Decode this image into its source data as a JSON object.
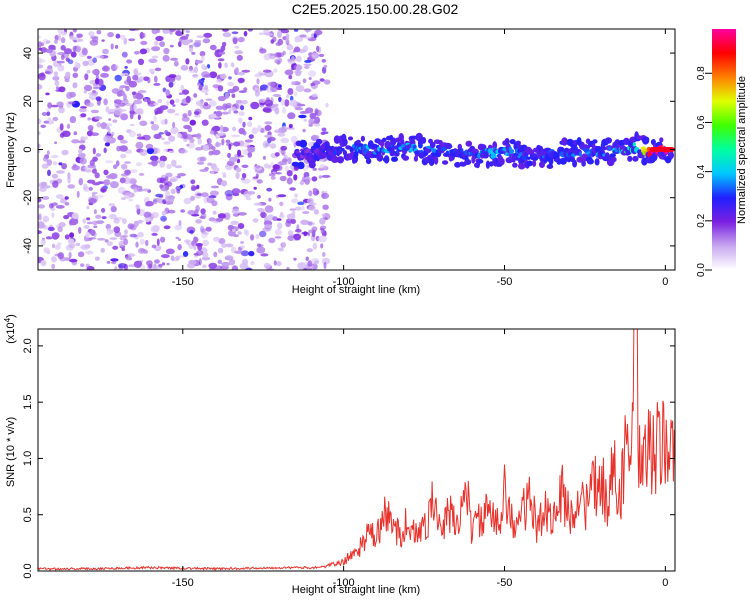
{
  "title": "C2E5.2025.150.00.28.G02",
  "chart_data": [
    {
      "type": "heatmap",
      "xlabel": "Height of straight line (km)",
      "ylabel": "Frequency (Hz)",
      "xlim": [
        -195,
        3
      ],
      "ylim": [
        -50,
        50
      ],
      "xticks": [
        -150,
        -100,
        -50,
        0
      ],
      "yticks": [
        -40,
        -20,
        0,
        20,
        40
      ],
      "colorbar": {
        "label": "Normalized spectral amplitude",
        "range": [
          0,
          1
        ],
        "ticks": [
          "0.0",
          "0.2",
          "0.4",
          "0.6",
          "0.8"
        ],
        "colors": [
          "#ffffff",
          "#c8a8f0",
          "#7a20e0",
          "#2020ff",
          "#00c8ff",
          "#00ffa0",
          "#40ff00",
          "#e0ff00",
          "#ff8000",
          "#ff0000",
          "#ff00a0"
        ]
      },
      "noise_region": {
        "x_range": [
          -195,
          -105
        ],
        "amplitude_range": [
          0.05,
          0.2
        ]
      },
      "signal_band": {
        "x_range": [
          -115,
          2
        ],
        "frequency_center": 0,
        "frequency_halfwidth": 5
      },
      "signal_trace": {
        "x": [
          -115,
          -105,
          -100,
          -90,
          -80,
          -70,
          -60,
          -50,
          -40,
          -30,
          -20,
          -12,
          -8,
          -5,
          -2,
          0,
          2
        ],
        "frequency": [
          -2,
          -1,
          0,
          0,
          1,
          -1,
          -2,
          -1,
          -3,
          -1,
          -1,
          0,
          1,
          -1,
          0,
          0,
          0
        ],
        "amplitude": [
          0.2,
          0.25,
          0.3,
          0.35,
          0.35,
          0.3,
          0.35,
          0.35,
          0.3,
          0.3,
          0.35,
          0.45,
          0.5,
          0.9,
          0.95,
          0.9,
          0.8
        ]
      }
    },
    {
      "type": "line",
      "xlabel": "Height of straight line (km)",
      "ylabel": "SNR (10 * v/v)",
      "y_multiplier": "(x10^4)",
      "xlim": [
        -195,
        3
      ],
      "ylim": [
        0,
        2.15
      ],
      "xticks": [
        -150,
        -100,
        -50,
        0
      ],
      "yticks": [
        "0.0",
        "0.5",
        "1.0",
        "1.5",
        "2.0"
      ],
      "series": [
        {
          "color": "#e8312b",
          "x": [
            -195,
            -180,
            -160,
            -140,
            -120,
            -110,
            -105,
            -100,
            -98,
            -95,
            -92,
            -90,
            -87,
            -85,
            -82,
            -80,
            -77,
            -75,
            -72,
            -70,
            -67,
            -65,
            -62,
            -60,
            -58,
            -55,
            -52,
            -50,
            -47,
            -45,
            -42,
            -40,
            -37,
            -35,
            -32,
            -30,
            -27,
            -25,
            -22,
            -20,
            -18,
            -16,
            -14,
            -12,
            -11,
            -10,
            -9.5,
            -9,
            -8.5,
            -8,
            -7,
            -6,
            -5,
            -4,
            -3,
            -2,
            -1,
            0,
            1,
            2,
            3
          ],
          "y": [
            0.02,
            0.02,
            0.03,
            0.02,
            0.03,
            0.03,
            0.04,
            0.07,
            0.12,
            0.18,
            0.3,
            0.25,
            0.45,
            0.35,
            0.3,
            0.4,
            0.25,
            0.35,
            0.55,
            0.3,
            0.45,
            0.35,
            0.65,
            0.3,
            0.4,
            0.45,
            0.35,
            0.7,
            0.3,
            0.45,
            0.55,
            0.35,
            0.5,
            0.4,
            0.6,
            0.45,
            0.55,
            0.5,
            0.65,
            0.7,
            0.55,
            0.8,
            0.6,
            1.0,
            0.9,
            1.4,
            1.6,
            2.1,
            1.0,
            0.85,
            0.75,
            0.9,
            0.95,
            0.95,
            0.9,
            1.0,
            0.95,
            1.05,
            1.0,
            0.95,
            0.9
          ]
        }
      ]
    }
  ]
}
